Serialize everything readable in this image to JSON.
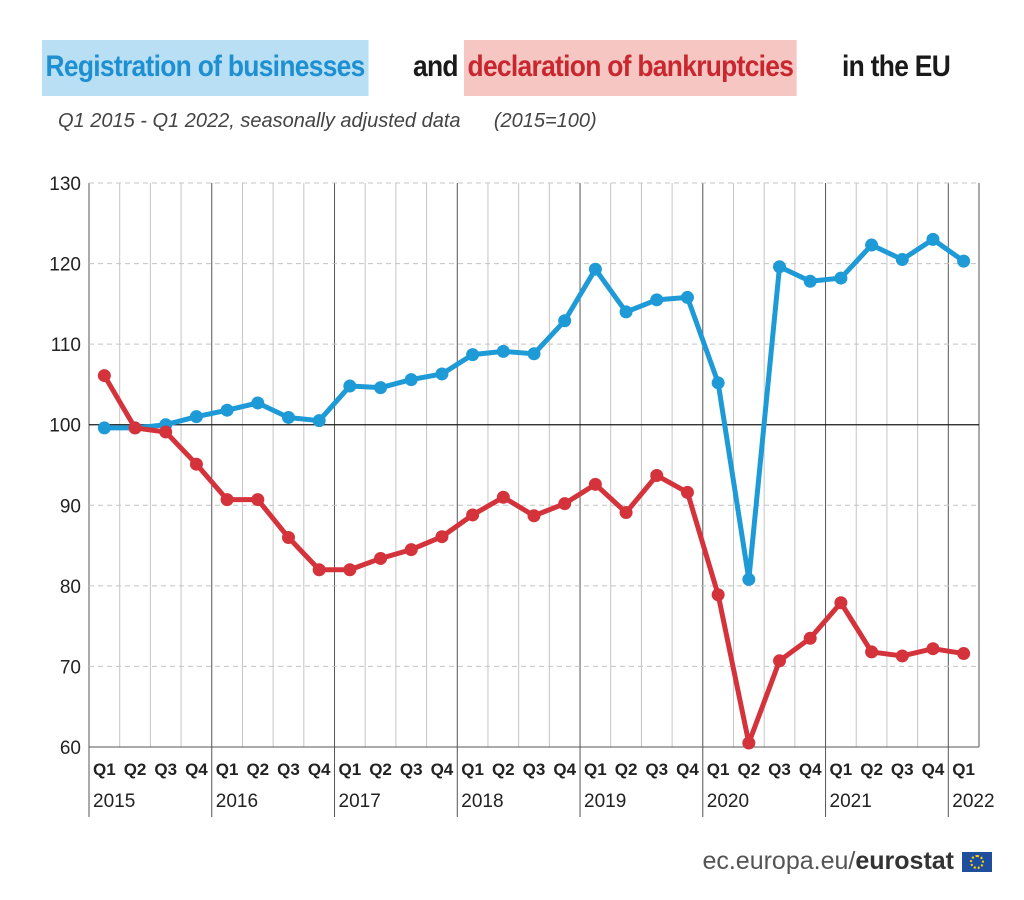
{
  "title": {
    "part1": "Registration of businesses",
    "part2": " and ",
    "part3": "declaration of bankruptcies",
    "part4": " in the EU"
  },
  "subtitle": "Q1 2015 - Q1 2022, seasonally adjusted data      (2015=100)",
  "footer": {
    "site": "ec.europa.eu/",
    "brand": "eurostat"
  },
  "colors": {
    "registrations": "#1e9ad6",
    "bankruptcies": "#d4333b",
    "grid": "#bdbdbd",
    "baseline": "#1a1a1a"
  },
  "chart_data": {
    "type": "line",
    "quarters": [
      "Q1",
      "Q2",
      "Q3",
      "Q4",
      "Q1",
      "Q2",
      "Q3",
      "Q4",
      "Q1",
      "Q2",
      "Q3",
      "Q4",
      "Q1",
      "Q2",
      "Q3",
      "Q4",
      "Q1",
      "Q2",
      "Q3",
      "Q4",
      "Q1",
      "Q2",
      "Q3",
      "Q4",
      "Q1",
      "Q2",
      "Q3",
      "Q4",
      "Q1"
    ],
    "years": [
      {
        "label": "2015",
        "start": 0
      },
      {
        "label": "2016",
        "start": 4
      },
      {
        "label": "2017",
        "start": 8
      },
      {
        "label": "2018",
        "start": 12
      },
      {
        "label": "2019",
        "start": 16
      },
      {
        "label": "2020",
        "start": 20
      },
      {
        "label": "2021",
        "start": 24
      },
      {
        "label": "2022",
        "start": 28
      }
    ],
    "series": [
      {
        "key": "registrations",
        "values": [
          99.6,
          99.6,
          100.0,
          101.0,
          101.8,
          102.7,
          100.9,
          100.5,
          104.8,
          104.6,
          105.6,
          106.3,
          108.7,
          109.1,
          108.8,
          112.9,
          119.3,
          114.0,
          115.5,
          115.8,
          105.2,
          80.8,
          119.6,
          117.8,
          118.2,
          122.3,
          120.5,
          123.0,
          120.3
        ]
      },
      {
        "key": "bankruptcies",
        "values": [
          106.1,
          99.6,
          99.1,
          95.1,
          90.7,
          90.7,
          86.0,
          82.0,
          82.0,
          83.4,
          84.5,
          86.1,
          88.8,
          91.0,
          88.7,
          90.2,
          92.6,
          89.1,
          93.7,
          91.6,
          78.9,
          60.5,
          70.7,
          73.5,
          77.9,
          71.8,
          71.3,
          72.2,
          71.6
        ]
      }
    ],
    "ylim": [
      60,
      130
    ],
    "yticks": [
      60,
      70,
      80,
      90,
      100,
      110,
      120,
      130
    ],
    "baseline": 100,
    "grid": true
  }
}
